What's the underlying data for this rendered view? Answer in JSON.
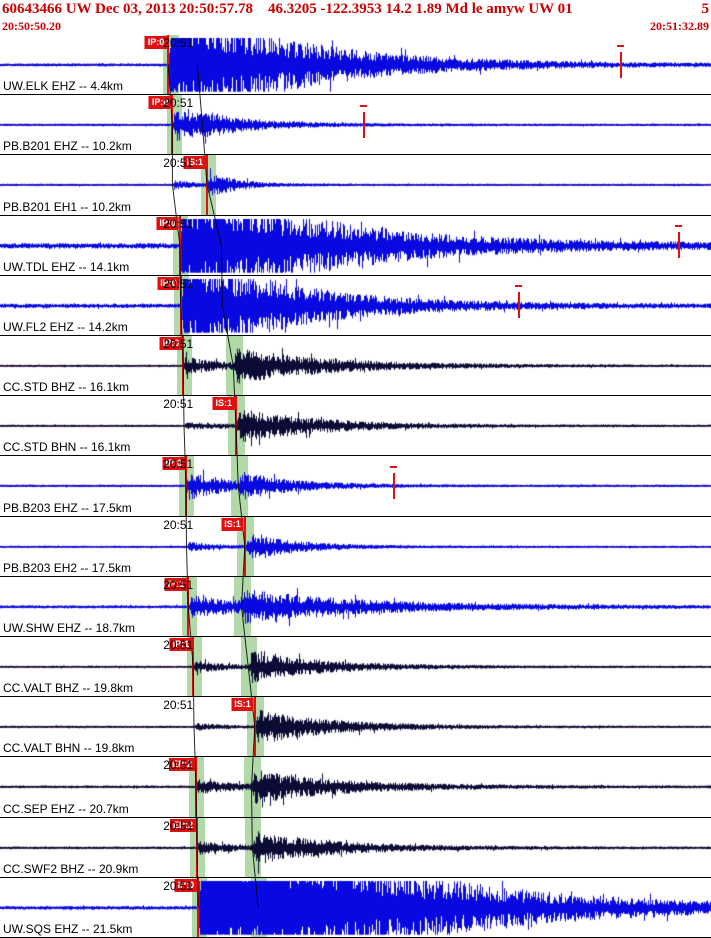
{
  "header": {
    "event_line": "60643466 UW Dec 03, 2013 20:50:57.78    46.3205 -122.3953 14.2 1.89 Md le amyw UW 01",
    "event_line_right": "5",
    "start_time": "20:50:50.20",
    "end_time": "20:51:32.89",
    "window_seconds": 42.69,
    "text_color": "#CC0000"
  },
  "minute_tick": {
    "label": "20:51",
    "sec": 9.8
  },
  "colors": {
    "blue": "#0808E0",
    "dark": "#0B0B36",
    "pick_red": "#E01010",
    "band_green": "#B2D9A8",
    "baseline_red": "#A01010"
  },
  "traces": [
    {
      "label": "UW.ELK EHZ -- 4.4km",
      "flag": "IP:0",
      "pick_sec": 10.1,
      "p_sec": 10.1,
      "s_sec": 11.85,
      "bands": [
        [
          9.8,
          10.75
        ]
      ],
      "color": "blue",
      "noise": 1.2,
      "p_amp": 70,
      "p_decay": 7.0,
      "s_amp": 0,
      "s_decay": 3.0,
      "marker_sec": 37.2
    },
    {
      "label": "PB.B201 EHZ -- 10.2km",
      "flag": "IP:0",
      "pick_sec": 10.35,
      "p_sec": 10.35,
      "s_sec": 12.15,
      "bands": [
        [
          10.0,
          10.9
        ]
      ],
      "color": "blue",
      "noise": 0.9,
      "p_amp": 16,
      "p_decay": 3.5,
      "s_amp": 4,
      "s_decay": 2.0,
      "marker_sec": 21.8
    },
    {
      "label": "PB.B201 EH1 -- 10.2km",
      "flag": "IS:1",
      "pick_sec": 12.43,
      "p_sec": 10.35,
      "s_sec": 12.43,
      "bands": [
        [
          12.05,
          12.95
        ]
      ],
      "color": "blue",
      "noise": 0.8,
      "p_amp": 4,
      "p_decay": 1.5,
      "s_amp": 12,
      "s_decay": 1.8
    },
    {
      "label": "UW.TDL EHZ -- 14.1km",
      "flag": "IP:0",
      "pick_sec": 10.8,
      "p_sec": 10.8,
      "s_sec": 13.3,
      "bands": [
        [
          10.4,
          11.3
        ]
      ],
      "color": "blue",
      "noise": 2.4,
      "p_amp": 70,
      "p_decay": 8.0,
      "s_amp": 0,
      "s_decay": 3.0,
      "marker_sec": 40.7
    },
    {
      "label": "UW.FL2 EHZ -- 14.2km",
      "flag": "IP:0",
      "pick_sec": 10.85,
      "p_sec": 10.85,
      "s_sec": 13.35,
      "bands": [
        [
          10.45,
          11.35
        ]
      ],
      "color": "blue",
      "noise": 1.8,
      "p_amp": 60,
      "p_decay": 6.0,
      "s_amp": 0,
      "s_decay": 3.0,
      "marker_sec": 31.1
    },
    {
      "label": "CC.STD BHZ -- 16.1km",
      "flag": "IP:0",
      "pick_sec": 11.0,
      "p_sec": 11.0,
      "s_sec": 14.0,
      "bands": [
        [
          10.6,
          11.5
        ],
        [
          13.55,
          14.6
        ]
      ],
      "color": "dark",
      "noise": 0.8,
      "p_amp": 9,
      "p_decay": 2.5,
      "s_amp": 16,
      "s_decay": 6.0
    },
    {
      "label": "CC.STD BHN -- 16.1km",
      "flag": "IS:1",
      "pick_sec": 14.17,
      "p_sec": 11.05,
      "s_sec": 14.17,
      "bands": [
        [
          13.7,
          14.7
        ]
      ],
      "color": "dark",
      "noise": 0.8,
      "p_amp": 4,
      "p_decay": 2.0,
      "s_amp": 17,
      "s_decay": 5.0
    },
    {
      "label": "PB.B203 EHZ -- 17.5km",
      "flag": "IP:0",
      "pick_sec": 11.17,
      "p_sec": 11.17,
      "s_sec": 14.3,
      "bands": [
        [
          10.75,
          11.65
        ],
        [
          13.85,
          14.9
        ]
      ],
      "color": "blue",
      "noise": 0.9,
      "p_amp": 15,
      "p_decay": 2.5,
      "s_amp": 10,
      "s_decay": 3.5,
      "marker_sec": 23.6
    },
    {
      "label": "PB.B203 EH2 -- 17.5km",
      "flag": "IS:1",
      "pick_sec": 14.7,
      "p_sec": 11.2,
      "s_sec": 14.7,
      "bands": [
        [
          14.25,
          15.25
        ]
      ],
      "color": "blue",
      "noise": 0.8,
      "p_amp": 4,
      "p_decay": 2.0,
      "s_amp": 13,
      "s_decay": 3.0
    },
    {
      "label": "UW.SHW EHZ -- 18.7km",
      "flag": "IP:1",
      "pick_sec": 11.3,
      "p_sec": 11.3,
      "s_sec": 14.5,
      "bands": [
        [
          10.9,
          11.8
        ],
        [
          14.05,
          15.05
        ]
      ],
      "color": "blue",
      "noise": 1.2,
      "p_amp": 11,
      "p_decay": 4.0,
      "s_amp": 13,
      "s_decay": 8.0
    },
    {
      "label": "CC.VALT BHZ -- 19.8km",
      "flag": "IP:1",
      "pick_sec": 11.6,
      "p_sec": 11.6,
      "s_sec": 14.9,
      "bands": [
        [
          11.2,
          12.1
        ],
        [
          14.45,
          15.45
        ]
      ],
      "color": "dark",
      "noise": 0.8,
      "p_amp": 6,
      "p_decay": 2.0,
      "s_amp": 15,
      "s_decay": 4.5
    },
    {
      "label": "CC.VALT BHN -- 19.8km",
      "flag": "IS:1",
      "pick_sec": 15.3,
      "p_sec": 11.65,
      "s_sec": 15.3,
      "bands": [
        [
          14.85,
          15.85
        ]
      ],
      "color": "dark",
      "noise": 0.8,
      "p_amp": 3,
      "p_decay": 2.0,
      "s_amp": 17,
      "s_decay": 4.5
    },
    {
      "label": "CC.SEP EHZ -- 20.7km",
      "flag": "EP:2",
      "pick_sec": 11.77,
      "p_sec": 11.77,
      "s_sec": 15.1,
      "bands": [
        [
          11.35,
          12.25
        ],
        [
          14.65,
          15.65
        ]
      ],
      "color": "dark",
      "noise": 1.0,
      "p_amp": 7,
      "p_decay": 2.5,
      "s_amp": 15,
      "s_decay": 5.5
    },
    {
      "label": "CC.SWF2 BHZ -- 20.9km",
      "flag": "EP:2",
      "pick_sec": 11.83,
      "p_sec": 11.83,
      "s_sec": 15.15,
      "bands": [
        [
          11.4,
          12.3
        ],
        [
          14.7,
          15.7
        ]
      ],
      "color": "dark",
      "noise": 1.0,
      "p_amp": 6,
      "p_decay": 2.5,
      "s_amp": 15,
      "s_decay": 5.0
    },
    {
      "label": "UW.SQS EHZ -- 21.5km",
      "flag": "IP:0",
      "pick_sec": 11.9,
      "p_sec": 11.9,
      "s_sec": 15.5,
      "bands": [
        [
          11.5,
          12.4
        ],
        [
          15.05,
          16.05
        ]
      ],
      "color": "blue",
      "noise": 1.5,
      "p_amp": 90,
      "p_decay": 10.0,
      "s_amp": 30,
      "s_decay": 8.0
    }
  ]
}
